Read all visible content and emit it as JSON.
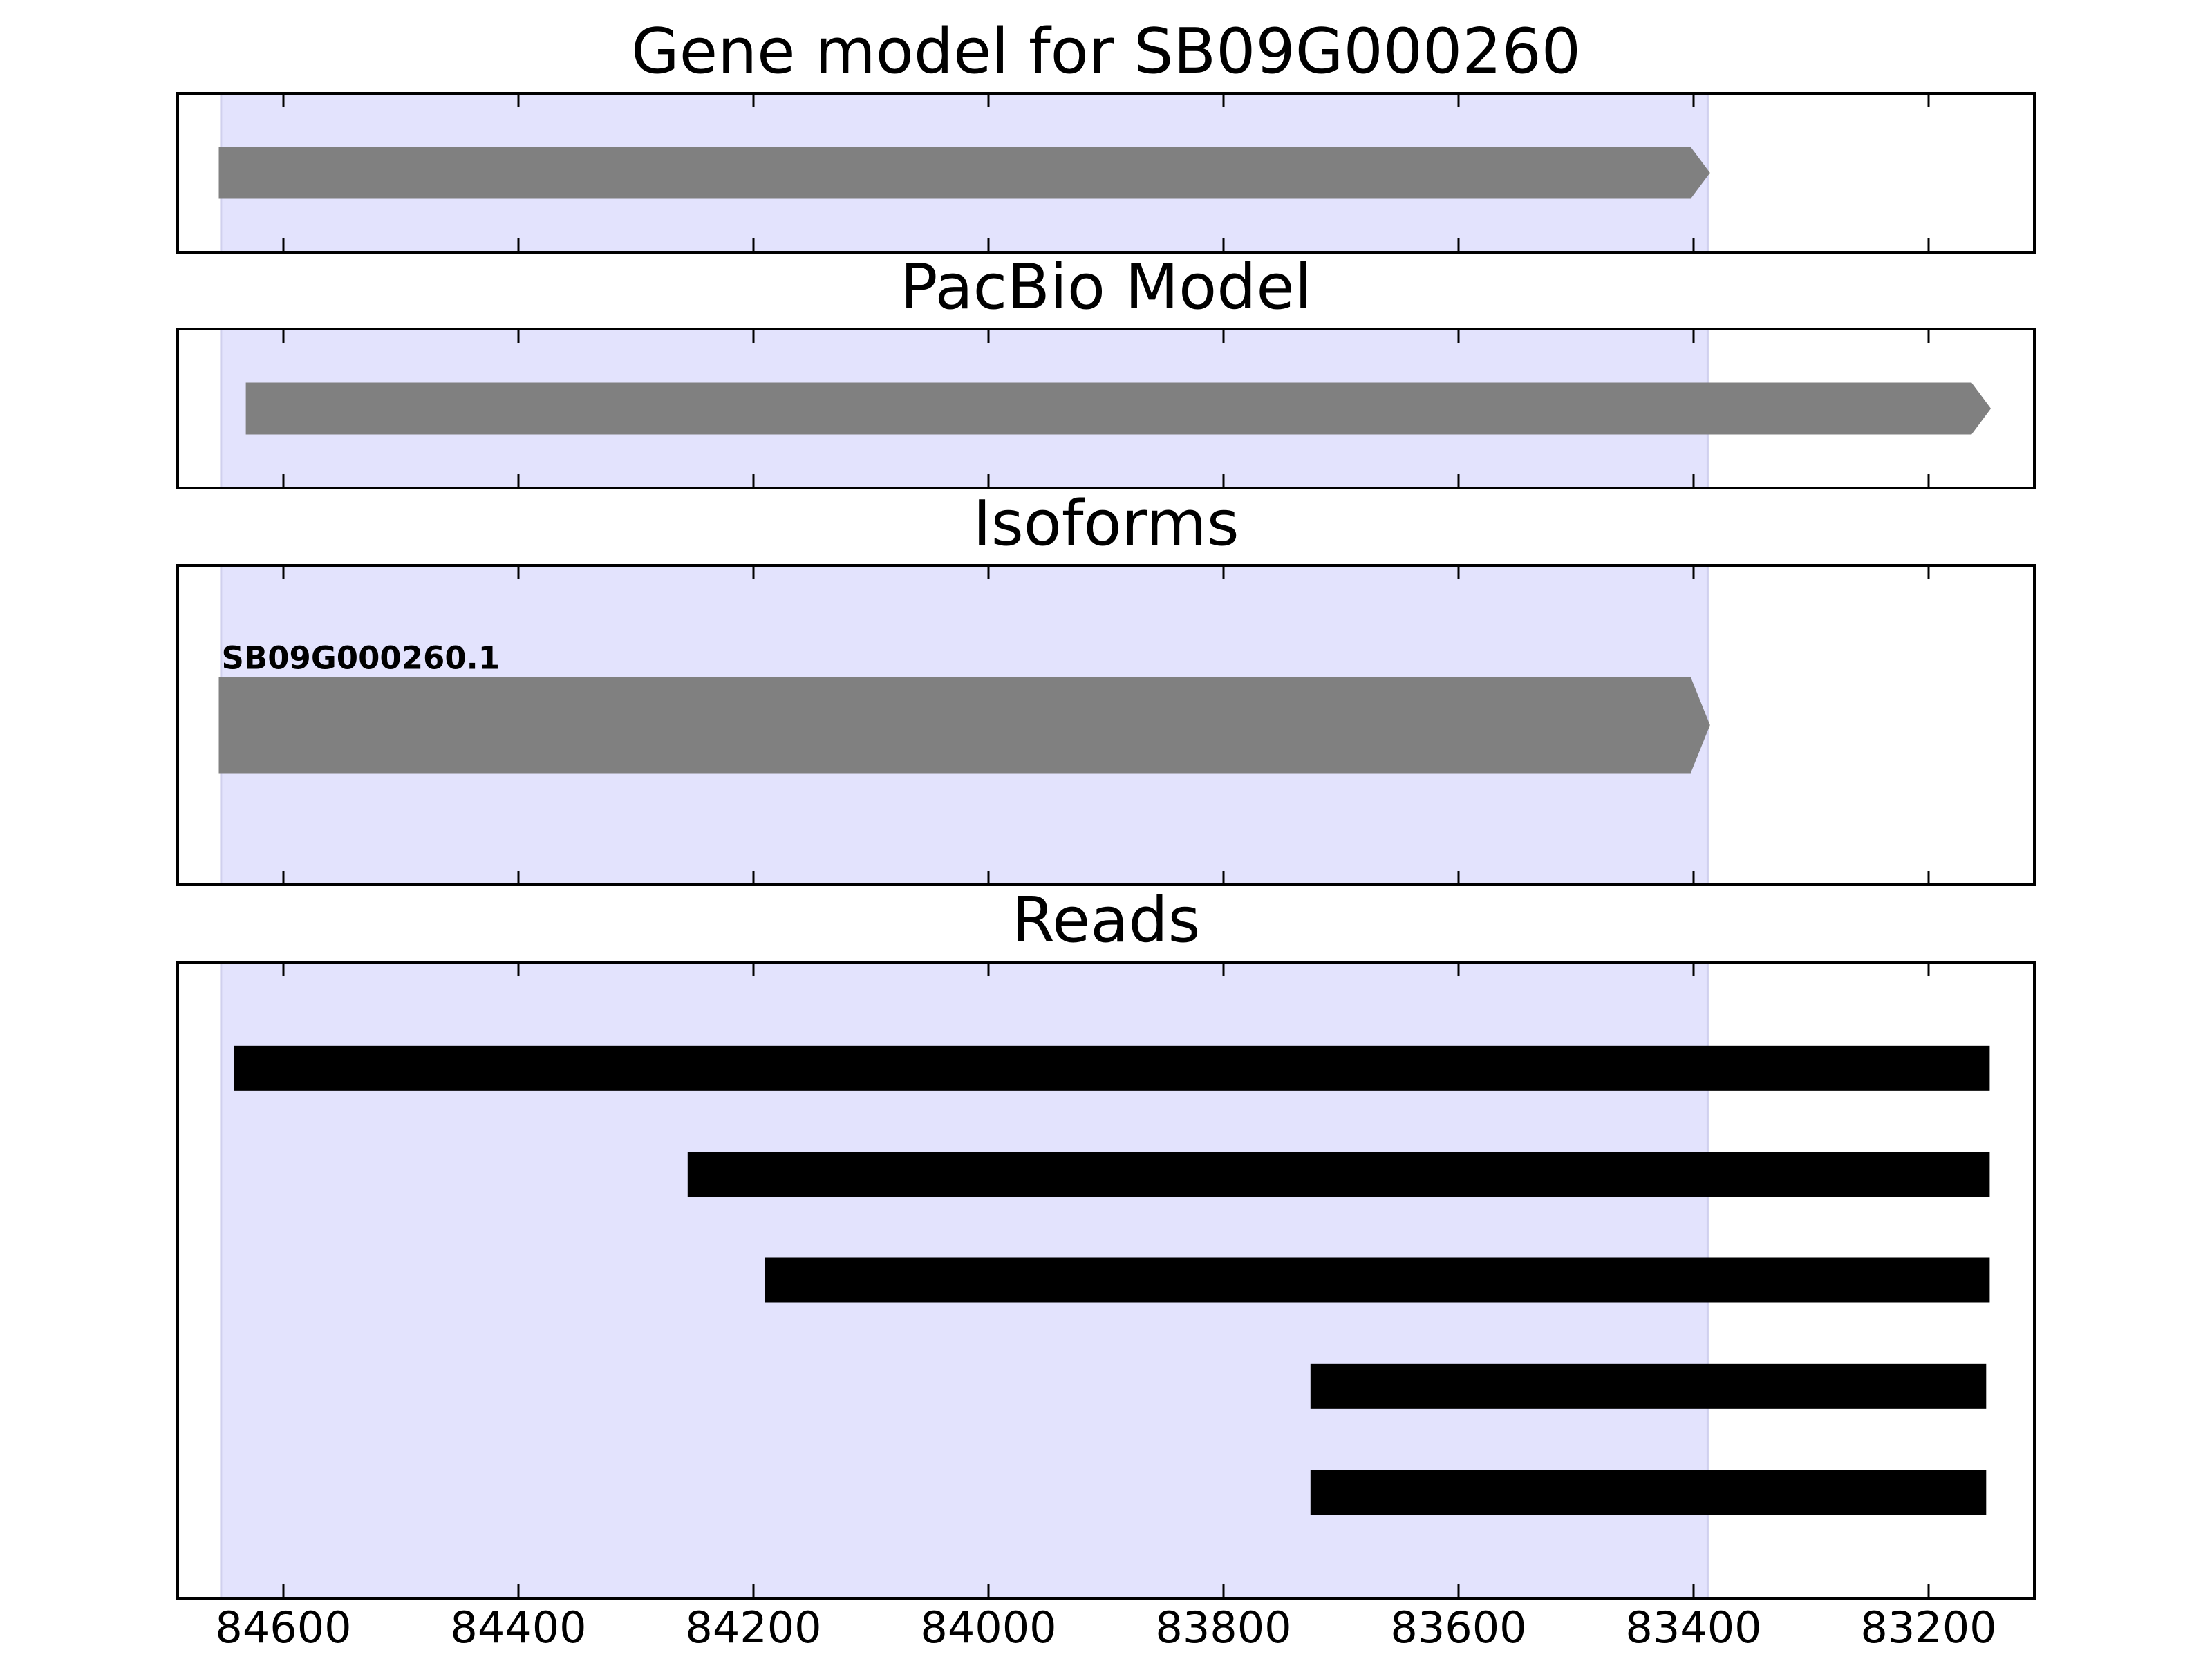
{
  "chart_data": [
    {
      "type": "gene",
      "title": "Gene model for SB09G000260",
      "xlim": [
        84690,
        83110
      ],
      "xticks": [
        84600,
        84400,
        84200,
        84000,
        83800,
        83600,
        83400,
        83200
      ],
      "highlight": [
        84653,
        83388
      ],
      "color": "#808080",
      "intervals": [
        {
          "start": 84655,
          "end": 83386
        }
      ]
    },
    {
      "type": "gene",
      "title": "PacBio Model",
      "xlim": [
        84690,
        83110
      ],
      "xticks": [
        84600,
        84400,
        84200,
        84000,
        83800,
        83600,
        83400,
        83200
      ],
      "highlight": [
        84653,
        83388
      ],
      "color": "#808080",
      "intervals": [
        {
          "start": 84632,
          "end": 83147
        }
      ]
    },
    {
      "type": "gene",
      "title": "Isoforms",
      "xlim": [
        84690,
        83110
      ],
      "xticks": [
        84600,
        84400,
        84200,
        84000,
        83800,
        83600,
        83400,
        83200
      ],
      "highlight": [
        84653,
        83388
      ],
      "color": "#808080",
      "intervals": [
        {
          "start": 84655,
          "end": 83386,
          "label": "SB09G000260.1"
        }
      ]
    },
    {
      "type": "reads",
      "title": "Reads",
      "xlim": [
        84690,
        83110
      ],
      "xticks": [
        84600,
        84400,
        84200,
        84000,
        83800,
        83600,
        83400,
        83200
      ],
      "highlight": [
        84653,
        83388
      ],
      "color": "#000000",
      "intervals": [
        {
          "start": 84642,
          "end": 83148
        },
        {
          "start": 84256,
          "end": 83148
        },
        {
          "start": 84190,
          "end": 83148
        },
        {
          "start": 83726,
          "end": 83151
        },
        {
          "start": 83726,
          "end": 83151
        }
      ]
    }
  ]
}
